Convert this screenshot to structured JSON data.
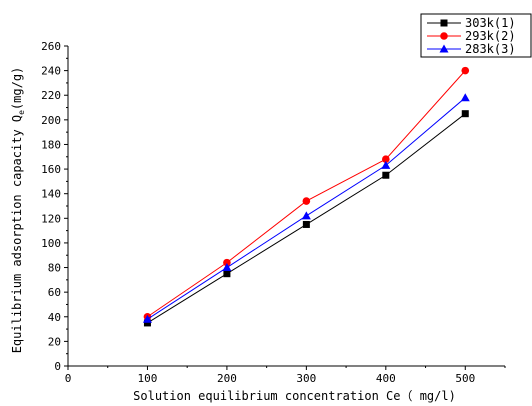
{
  "chart_data": {
    "type": "line",
    "xlabel": "Solution equilibrium concentration Ce（ mg/l)",
    "ylabel_main": "Equilibrium adsorption capacity Q",
    "ylabel_sub": "e",
    "ylabel_unit": "(mg/g)",
    "xlim": [
      0,
      550
    ],
    "ylim": [
      0,
      260
    ],
    "xticks": [
      0,
      100,
      200,
      300,
      400,
      500
    ],
    "yticks": [
      0,
      20,
      40,
      60,
      80,
      100,
      120,
      140,
      160,
      180,
      200,
      220,
      240,
      260
    ],
    "legend_position": "top-right",
    "series": [
      {
        "name": "303k(1)",
        "color": "#000000",
        "marker": "square",
        "x": [
          100,
          200,
          300,
          400,
          500
        ],
        "y": [
          35,
          75,
          115,
          155,
          205
        ]
      },
      {
        "name": "293k(2)",
        "color": "#ff0000",
        "marker": "circle",
        "x": [
          100,
          200,
          300,
          400,
          500
        ],
        "y": [
          40,
          84,
          134,
          168,
          240
        ]
      },
      {
        "name": "283k(3)",
        "color": "#0000ff",
        "marker": "triangle",
        "x": [
          100,
          200,
          300,
          400,
          500
        ],
        "y": [
          38,
          80,
          122,
          163,
          218
        ]
      }
    ]
  }
}
